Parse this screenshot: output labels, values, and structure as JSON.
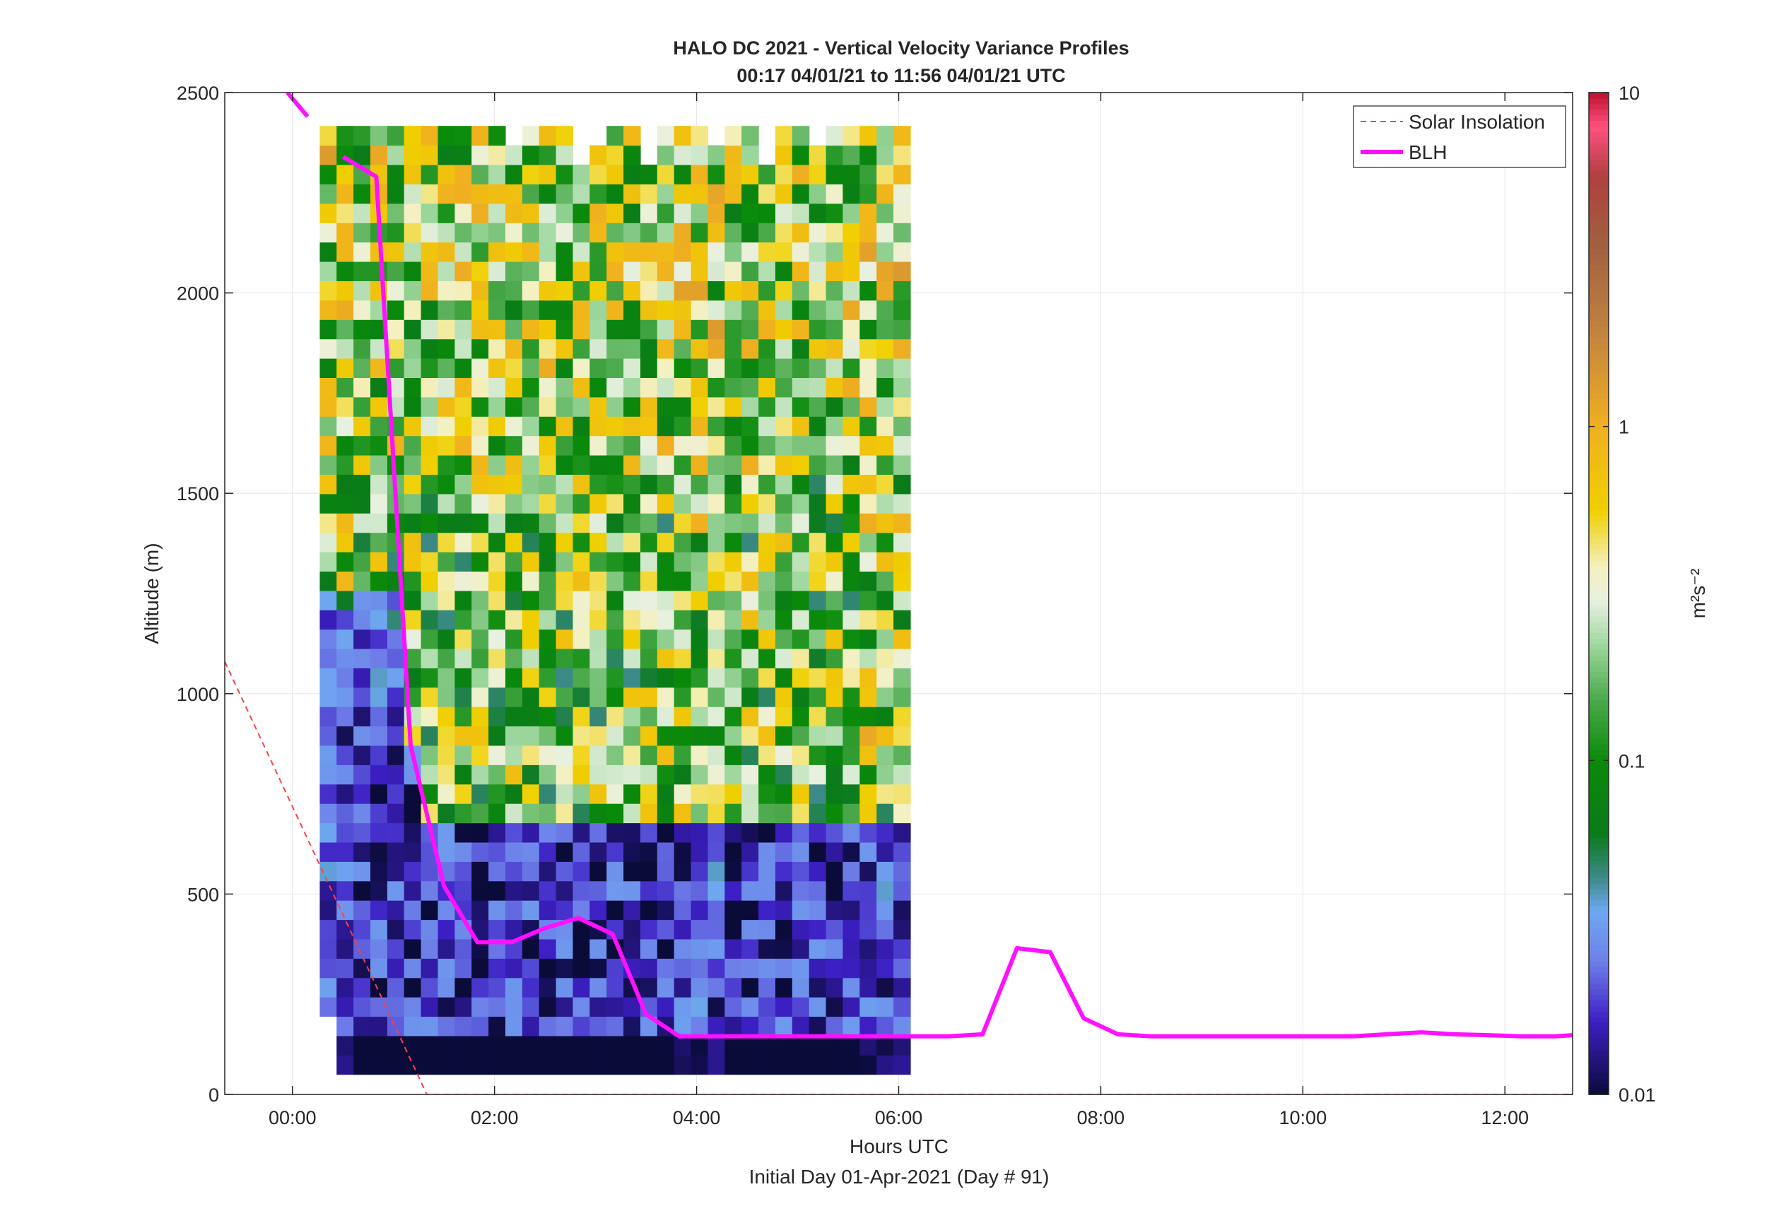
{
  "chart_data": {
    "type": "heatmap",
    "title": "HALO DC 2021 - Vertical Velocity Variance Profiles",
    "subtitle": "00:17 04/01/21 to 11:56 04/01/21  UTC",
    "xlabel": "Hours UTC",
    "xlabel2": "Initial Day 01-Apr-2021 (Day # 91)",
    "ylabel": "Altitude (m)",
    "xlim_hours": [
      -0.67,
      12.67
    ],
    "ylim": [
      0,
      2500
    ],
    "x_ticks": [
      {
        "v": 0,
        "label": "00:00"
      },
      {
        "v": 2,
        "label": "02:00"
      },
      {
        "v": 4,
        "label": "04:00"
      },
      {
        "v": 6,
        "label": "06:00"
      },
      {
        "v": 8,
        "label": "08:00"
      },
      {
        "v": 10,
        "label": "10:00"
      },
      {
        "v": 12,
        "label": "12:00"
      }
    ],
    "y_ticks": [
      {
        "v": 0,
        "label": "0"
      },
      {
        "v": 500,
        "label": "500"
      },
      {
        "v": 1000,
        "label": "1000"
      },
      {
        "v": 1500,
        "label": "1500"
      },
      {
        "v": 2000,
        "label": "2000"
      },
      {
        "v": 2500,
        "label": "2500"
      }
    ],
    "grid": true,
    "legend_position": "top-right",
    "colorbar": {
      "label": "m²s⁻²",
      "scale": "log",
      "range": [
        0.01,
        10
      ],
      "ticks": [
        {
          "v": 0.01,
          "label": "0.01"
        },
        {
          "v": 0.1,
          "label": "0.1"
        },
        {
          "v": 1,
          "label": "1"
        },
        {
          "v": 10,
          "label": "10"
        }
      ],
      "stops": [
        {
          "log": -2.0,
          "color": "#0b0b3a"
        },
        {
          "log": -1.78,
          "color": "#3d1fc4"
        },
        {
          "log": -1.6,
          "color": "#6e7fe8"
        },
        {
          "log": -1.45,
          "color": "#6ea8f0"
        },
        {
          "log": -1.35,
          "color": "#3d8a8a"
        },
        {
          "log": -1.22,
          "color": "#0a7a1a"
        },
        {
          "log": -1.0,
          "color": "#0a8a0a"
        },
        {
          "log": -0.82,
          "color": "#4aa84a"
        },
        {
          "log": -0.65,
          "color": "#a0d8a0"
        },
        {
          "log": -0.52,
          "color": "#e8f0e0"
        },
        {
          "log": -0.42,
          "color": "#f4f0c0"
        },
        {
          "log": -0.25,
          "color": "#f0d000"
        },
        {
          "log": 0.0,
          "color": "#f0b020"
        },
        {
          "log": 0.3,
          "color": "#c08040"
        },
        {
          "log": 0.55,
          "color": "#a06040"
        },
        {
          "log": 0.75,
          "color": "#b04040"
        },
        {
          "log": 0.9,
          "color": "#ff5080"
        },
        {
          "log": 1.0,
          "color": "#c01030"
        }
      ]
    },
    "heatmap_grid": {
      "time_start_hour": 0.27,
      "time_step_hours": 0.167,
      "n_time": 35,
      "alt_start_m": 50,
      "alt_step_m": 48.3,
      "n_alt": 49,
      "values_log10": "procedurally approximated field: low variance (~0.01) below BLH, mixed 0.05–1 m²s⁻² aloft"
    },
    "series": [
      {
        "name": "Solar Insolation",
        "style": "dashed",
        "color": "#ff4040",
        "x": [
          -0.67,
          1.33,
          12.67
        ],
        "y": [
          1080,
          0,
          0
        ]
      },
      {
        "name": "BLH",
        "style": "solid",
        "color": "#ff10ff",
        "segments": [
          {
            "x": [
              -0.05,
              0.15
            ],
            "y": [
              2500,
              2440
            ]
          },
          {
            "x": [
              0.5,
              0.83,
              1.17,
              1.5,
              1.83,
              2.17,
              2.5,
              2.83,
              3.17,
              3.5,
              3.83,
              4.17,
              4.5,
              4.83,
              5.17,
              5.5,
              5.83,
              6.17,
              6.5,
              6.83,
              7.17,
              7.5,
              7.83,
              8.17,
              8.5,
              8.83,
              9.17,
              9.5,
              9.83,
              10.17,
              10.5,
              10.83,
              11.17,
              11.5,
              11.83,
              12.17,
              12.5,
              12.67
            ],
            "y": [
              2340,
              2290,
              870,
              520,
              380,
              380,
              415,
              440,
              400,
              200,
              145,
              145,
              145,
              145,
              145,
              145,
              145,
              145,
              145,
              150,
              365,
              355,
              190,
              150,
              145,
              145,
              145,
              145,
              145,
              145,
              145,
              150,
              155,
              150,
              148,
              145,
              145,
              148
            ]
          }
        ]
      }
    ]
  }
}
